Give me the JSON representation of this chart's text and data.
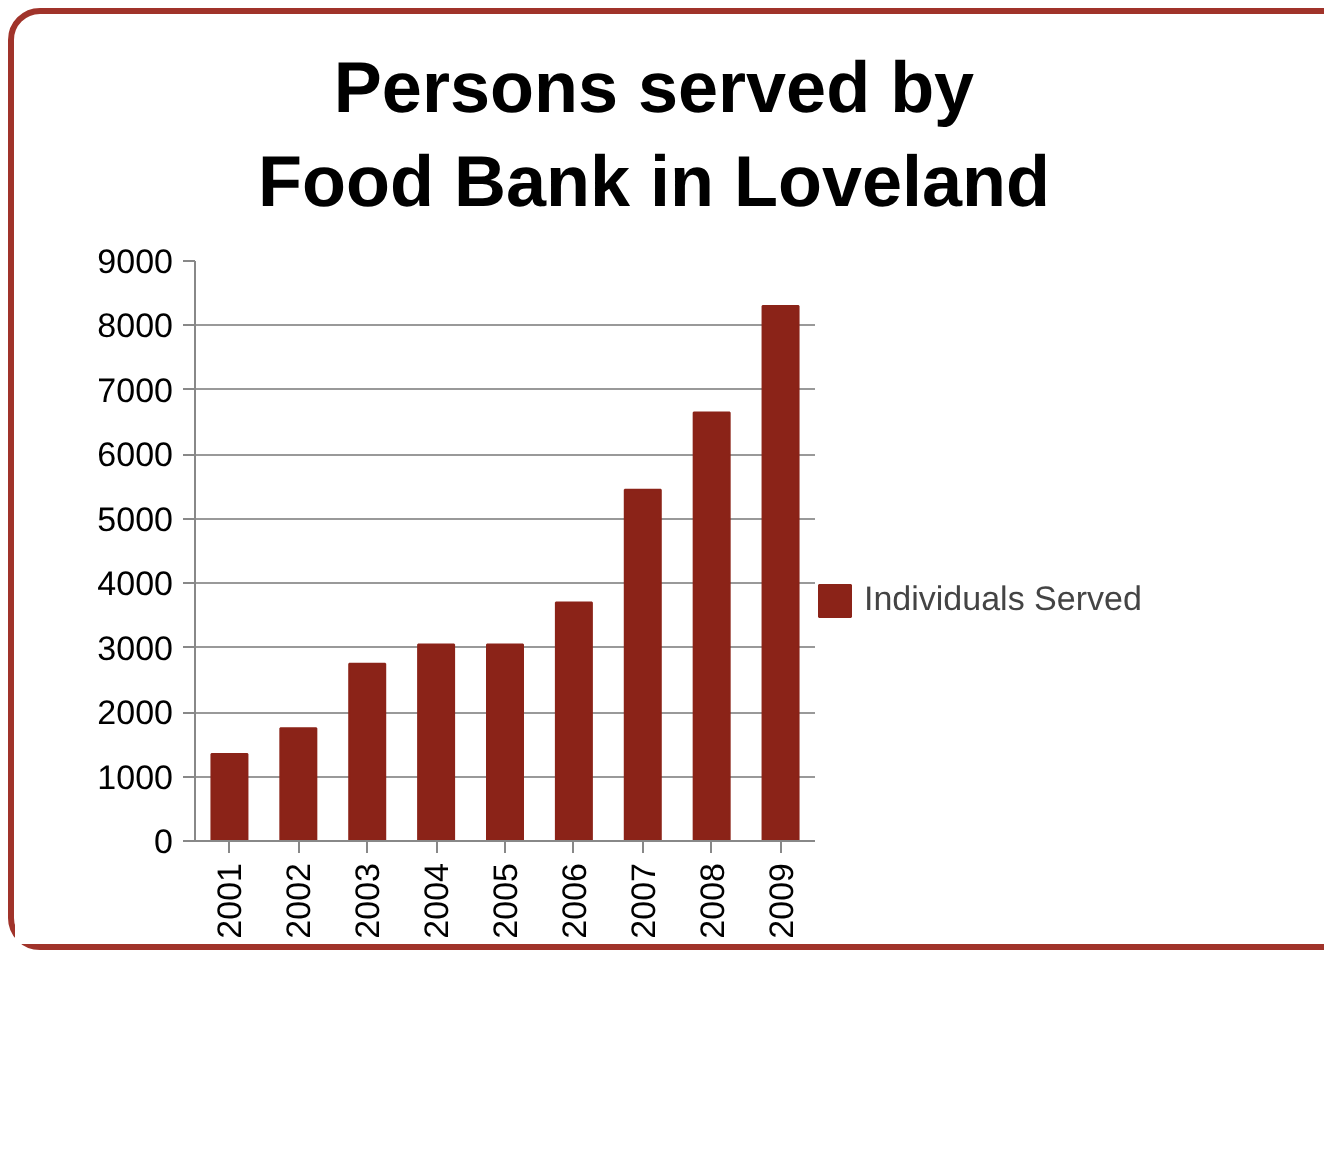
{
  "chart_data": {
    "type": "bar",
    "title": "Persons served by Food Bank in Loveland",
    "categories": [
      "2001",
      "2002",
      "2003",
      "2004",
      "2005",
      "2006",
      "2007",
      "2008",
      "2009"
    ],
    "series": [
      {
        "name": "Individuals Served",
        "color": "#8b2318",
        "values": [
          1350,
          1750,
          2750,
          3050,
          3050,
          3700,
          5450,
          6650,
          8300
        ]
      }
    ],
    "ylim": [
      0,
      9000
    ],
    "yticks": [
      0,
      1000,
      2000,
      3000,
      4000,
      5000,
      6000,
      7000,
      8000,
      9000
    ],
    "grid": "y",
    "legend": "right"
  }
}
